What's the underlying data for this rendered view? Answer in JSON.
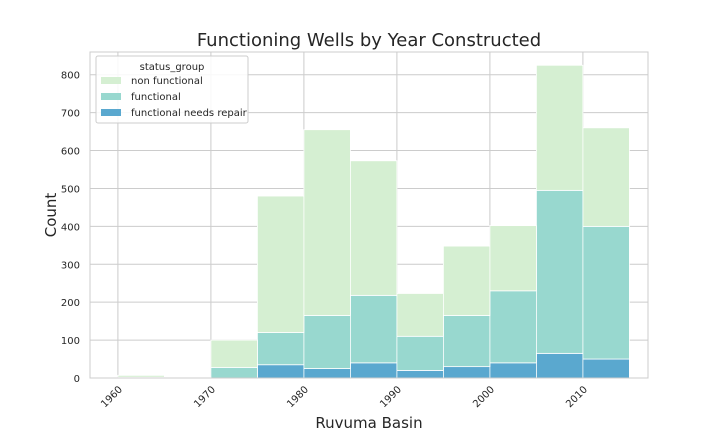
{
  "chart_data": {
    "type": "bar",
    "stacked": true,
    "title": "Functioning Wells by Year Constructed",
    "xlabel": "Ruvuma Basin",
    "ylabel": "Count",
    "bin_edges": [
      1960,
      1965,
      1970,
      1975,
      1980,
      1985,
      1990,
      1995,
      2000,
      2005,
      2010,
      2015
    ],
    "x_ticks": [
      1960,
      1970,
      1980,
      1990,
      2000,
      2010
    ],
    "x_tick_labels": [
      "1960",
      "1970",
      "1980",
      "1990",
      "2000",
      "2010"
    ],
    "xlim": [
      1957,
      2017
    ],
    "ylim": [
      0,
      860
    ],
    "y_ticks": [
      0,
      100,
      200,
      300,
      400,
      500,
      600,
      700,
      800
    ],
    "y_tick_labels": [
      "0",
      "100",
      "200",
      "300",
      "400",
      "500",
      "600",
      "700",
      "800"
    ],
    "grid": true,
    "legend": {
      "title": "status_group",
      "placement": "top-left",
      "entries": [
        "non functional",
        "functional",
        "functional needs repair"
      ]
    },
    "series": [
      {
        "name": "functional needs repair",
        "color": "#5aa8cf",
        "values": [
          0,
          0,
          0,
          35,
          25,
          40,
          20,
          30,
          40,
          65,
          50
        ]
      },
      {
        "name": "functional",
        "color": "#98d8cf",
        "values": [
          2,
          0,
          28,
          85,
          140,
          178,
          90,
          135,
          190,
          430,
          350
        ]
      },
      {
        "name": "non functional",
        "color": "#d5efd2",
        "values": [
          5,
          2,
          72,
          360,
          490,
          355,
          113,
          183,
          172,
          330,
          260
        ]
      }
    ]
  }
}
